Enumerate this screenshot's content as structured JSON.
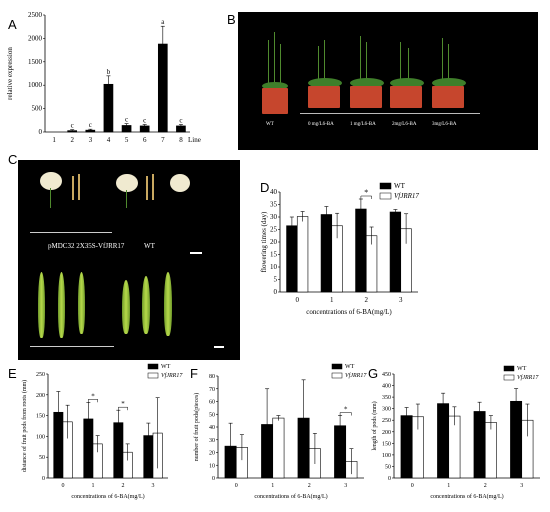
{
  "panel_letters": [
    "A",
    "B",
    "C",
    "D",
    "E",
    "F",
    "G"
  ],
  "photo_b": {
    "labels": [
      "WT",
      "0 mg/L6-BA",
      "1 mg/L6-BA",
      "2mg/L6-BA",
      "3mg/L6-BA"
    ]
  },
  "photo_c": {
    "left_label": "pMDC32 2X35S-VfJRR17",
    "right_label": "WT"
  },
  "colors": {
    "black_bar": "#000000",
    "white_bar": "#ffffff",
    "photo_bg": "#000000"
  },
  "chart_data": [
    {
      "panel": "A",
      "type": "bar",
      "categories": [
        "1",
        "2",
        "3",
        "4",
        "5",
        "6",
        "7",
        "8"
      ],
      "x_suffix": "Line",
      "values": [
        0,
        30,
        40,
        1020,
        140,
        130,
        1880,
        130
      ],
      "errors": [
        0,
        20,
        20,
        180,
        40,
        30,
        380,
        30
      ],
      "letters": [
        "",
        "c",
        "c",
        "b",
        "c",
        "c",
        "a",
        "c"
      ],
      "ylabel": "relative expression",
      "ylim": [
        0,
        2500
      ],
      "yticks": [
        "0",
        "500",
        "1000",
        "1500",
        "2000",
        "2500"
      ]
    },
    {
      "panel": "D",
      "type": "bar",
      "categories": [
        "0",
        "1",
        "2",
        "3"
      ],
      "series": [
        {
          "name": "WT",
          "values": [
            26.5,
            31,
            33.2,
            32
          ],
          "errors": [
            3.5,
            3.2,
            4,
            1
          ]
        },
        {
          "name": "VfJRR17",
          "values": [
            30.2,
            26.5,
            22.5,
            25.3
          ],
          "errors": [
            2,
            5,
            3.5,
            6
          ]
        }
      ],
      "ylabel": "flowering times  (day)",
      "xlabel": "concentrations of 6-BA(mg/L)",
      "ylim": [
        0,
        40
      ],
      "yticks": [
        "0",
        "5",
        "10",
        "15",
        "20",
        "25",
        "30",
        "35",
        "40"
      ],
      "significance": [
        {
          "category": 2,
          "label": "*"
        }
      ],
      "legend": "top-right"
    },
    {
      "panel": "E",
      "type": "bar",
      "categories": [
        "0",
        "1",
        "2",
        "3"
      ],
      "series": [
        {
          "name": "WT",
          "values": [
            158,
            142,
            133,
            102
          ],
          "errors": [
            50,
            40,
            30,
            30
          ]
        },
        {
          "name": "VfJRR17",
          "values": [
            135,
            82,
            62,
            108
          ],
          "errors": [
            40,
            20,
            20,
            85
          ]
        }
      ],
      "ylabel": "distance of fruit pods from roots  (mm)",
      "xlabel": "concentrations of 6-BA(mg/L)",
      "ylim": [
        0,
        250
      ],
      "yticks": [
        "0",
        "50",
        "100",
        "150",
        "200",
        "250"
      ],
      "significance": [
        {
          "category": 1,
          "label": "*"
        },
        {
          "category": 2,
          "label": "*"
        }
      ],
      "legend": "top-right"
    },
    {
      "panel": "F",
      "type": "bar",
      "categories": [
        "0",
        "1",
        "2",
        "3"
      ],
      "series": [
        {
          "name": "WT",
          "values": [
            25,
            42,
            47,
            41
          ],
          "errors": [
            18,
            28,
            30,
            8
          ]
        },
        {
          "name": "VfJRR17",
          "values": [
            24,
            47,
            23,
            13
          ],
          "errors": [
            10,
            2,
            12,
            10
          ]
        }
      ],
      "ylabel": "number of fruit pods(pieces)",
      "xlabel": "concentrations of 6-BA(mg/L)",
      "ylim": [
        0,
        80
      ],
      "yticks": [
        "0",
        "10",
        "20",
        "30",
        "40",
        "50",
        "60",
        "70",
        "80"
      ],
      "significance": [
        {
          "category": 3,
          "label": "*"
        }
      ],
      "legend": "top-right"
    },
    {
      "panel": "G",
      "type": "bar",
      "categories": [
        "0",
        "1",
        "2",
        "3"
      ],
      "series": [
        {
          "name": "WT",
          "values": [
            270,
            322,
            288,
            332
          ],
          "errors": [
            35,
            45,
            40,
            55
          ]
        },
        {
          "name": "VfJRR17",
          "values": [
            265,
            268,
            240,
            250
          ],
          "errors": [
            55,
            40,
            30,
            70
          ]
        }
      ],
      "ylabel": "length of pods (mm)",
      "xlabel": "concentrations of 6-BA(mg/L)",
      "ylim": [
        0,
        450
      ],
      "yticks": [
        "0",
        "50",
        "100",
        "150",
        "200",
        "250",
        "300",
        "350",
        "400",
        "450"
      ],
      "legend": "top-right"
    }
  ]
}
